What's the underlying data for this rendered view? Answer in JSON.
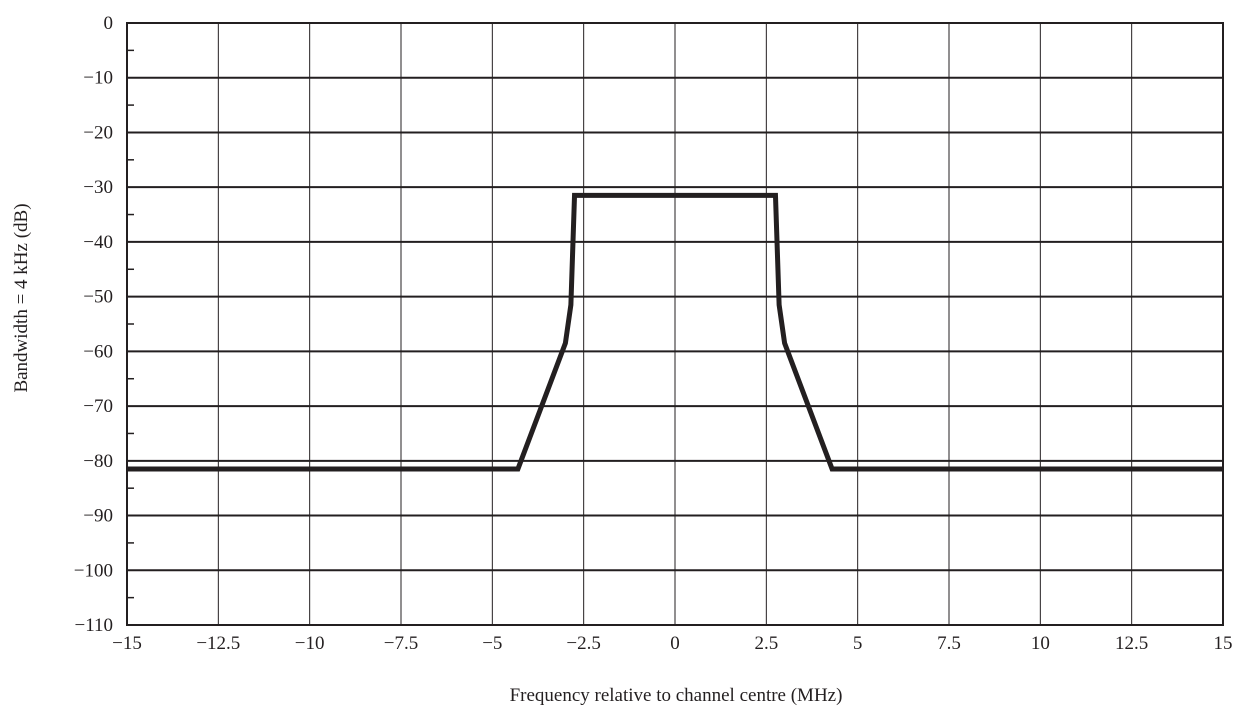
{
  "chart_data": {
    "type": "line",
    "title": "",
    "xlabel": "Frequency relative to channel centre (MHz)",
    "ylabel": "Bandwidth = 4 kHz (dB)",
    "xlim": [
      -15,
      15
    ],
    "ylim": [
      -110,
      0
    ],
    "x_ticks": [
      -15,
      -12.5,
      -10,
      -7.5,
      -5,
      -2.5,
      0,
      2.5,
      5,
      7.5,
      10,
      12.5,
      15
    ],
    "x_tick_labels": [
      "−15",
      "−12.5",
      "−10",
      "−7.5",
      "−5",
      "−2.5",
      "0",
      "2.5",
      "5",
      "7.5",
      "10",
      "12.5",
      "15"
    ],
    "y_ticks": [
      0,
      -10,
      -20,
      -30,
      -40,
      -50,
      -60,
      -70,
      -80,
      -90,
      -100,
      -110
    ],
    "y_tick_labels": [
      "0",
      "−10",
      "−20",
      "−30",
      "−40",
      "−50",
      "−60",
      "−70",
      "−80",
      "−90",
      "−100",
      "−110"
    ],
    "y_minor_step": 5,
    "grid": true,
    "legend": "none",
    "line_color": "#231f20",
    "series": [
      {
        "x": [
          -15,
          -4.3,
          -3.0,
          -2.85,
          -2.75,
          2.75,
          2.85,
          3.0,
          4.3,
          15
        ],
        "y": [
          -81.5,
          -81.5,
          -58.5,
          -51.5,
          -31.5,
          -31.5,
          -51.5,
          -58.5,
          -81.5,
          -81.5
        ]
      }
    ]
  }
}
